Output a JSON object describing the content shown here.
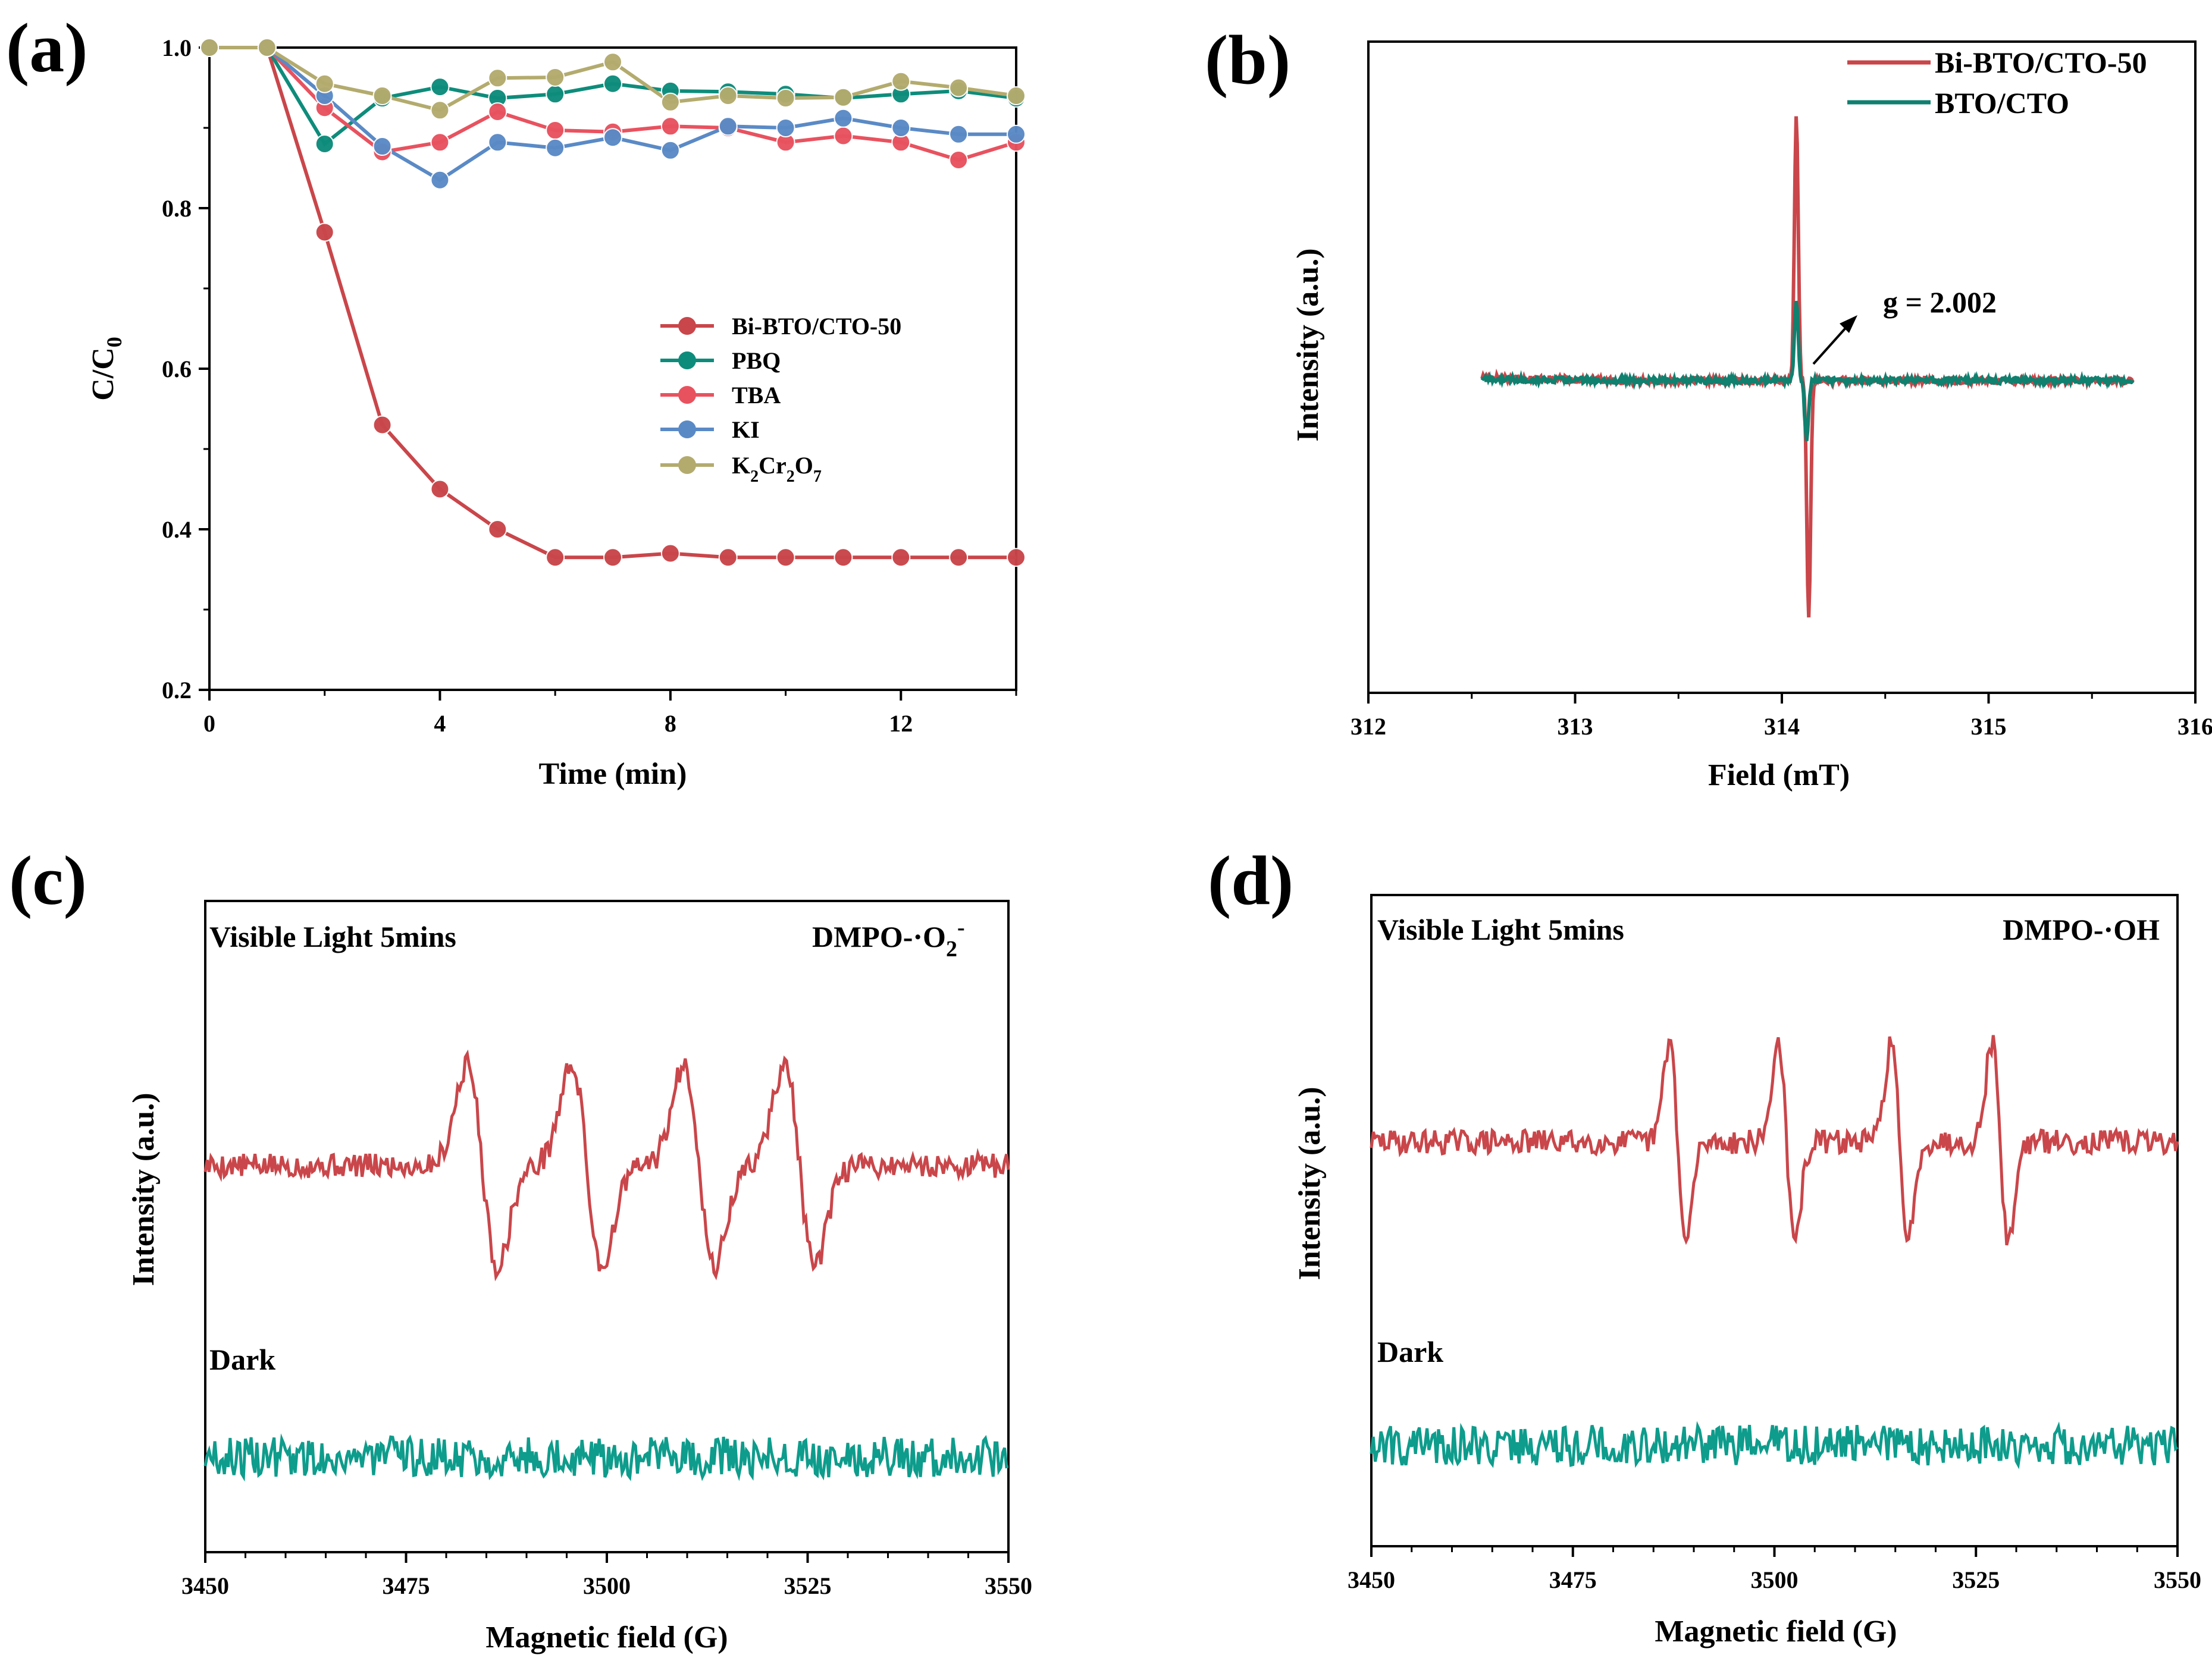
{
  "colors": {
    "red": "#C9464A",
    "teal": "#0E8C7B",
    "teal_dark": "#10806F",
    "pink": "#E8525F",
    "blue": "#5A8AC6",
    "khaki": "#B3AB6E"
  },
  "chart_data": [
    {
      "panel": "(a)",
      "type": "line",
      "xlabel": "Time (min)",
      "ylabel": "C/C0",
      "ylabel_main": "C/C",
      "ylabel_sub": "0",
      "xlim": [
        0,
        14
      ],
      "ylim": [
        0.2,
        1.0
      ],
      "xticks": [
        0,
        4,
        8,
        12
      ],
      "xtick_labels": [
        "0",
        "4",
        "8",
        "12"
      ],
      "yticks": [
        0.2,
        0.4,
        0.6,
        0.8,
        1.0
      ],
      "ytick_labels": [
        "0.2",
        "0.4",
        "0.6",
        "0.8",
        "1.0"
      ],
      "legend_position": "right",
      "x": [
        0,
        1,
        2,
        3,
        4,
        5,
        6,
        7,
        8,
        9,
        10,
        11,
        12,
        13,
        14
      ],
      "series": [
        {
          "name": "Bi-BTO/CTO-50",
          "color": "#C9464A",
          "values": [
            1.0,
            1.0,
            0.77,
            0.53,
            0.45,
            0.4,
            0.365,
            0.365,
            0.37,
            0.365,
            0.365,
            0.365,
            0.365,
            0.365,
            0.365
          ]
        },
        {
          "name": "PBQ",
          "color": "#0E8C7B",
          "values": [
            1.0,
            1.0,
            0.88,
            0.937,
            0.951,
            0.937,
            0.942,
            0.955,
            0.946,
            0.945,
            0.942,
            0.937,
            0.942,
            0.946,
            0.937
          ]
        },
        {
          "name": "TBA",
          "color": "#E8525F",
          "values": [
            1.0,
            1.0,
            0.925,
            0.87,
            0.882,
            0.92,
            0.897,
            0.895,
            0.902,
            0.9,
            0.882,
            0.89,
            0.882,
            0.86,
            0.882
          ]
        },
        {
          "name": "KI",
          "color": "#5A8AC6",
          "values": [
            1.0,
            1.0,
            0.94,
            0.877,
            0.835,
            0.882,
            0.875,
            0.888,
            0.872,
            0.902,
            0.9,
            0.912,
            0.9,
            0.892,
            0.892
          ]
        },
        {
          "name": "K2Cr2O7",
          "color": "#B3AB6E",
          "label_parts": [
            "K",
            "2",
            "Cr",
            "2",
            "O",
            "7"
          ],
          "values": [
            1.0,
            1.0,
            0.955,
            0.94,
            0.922,
            0.962,
            0.963,
            0.982,
            0.932,
            0.94,
            0.937,
            0.938,
            0.958,
            0.95,
            0.94
          ]
        }
      ]
    },
    {
      "panel": "(b)",
      "type": "line",
      "xlabel": "Field (mT)",
      "ylabel": "Intensity (a.u.)",
      "xlim": [
        312,
        316
      ],
      "xticks": [
        312,
        313,
        314,
        315,
        316
      ],
      "xtick_labels": [
        "312",
        "313",
        "314",
        "315",
        "316"
      ],
      "annotation": "g = 2.002",
      "legend_position": "top-right",
      "series": [
        {
          "name": "Bi-BTO/CTO-50",
          "color": "#C9464A",
          "baseline": 0.0,
          "positive_peak_x": 314.07,
          "positive_peak": 0.95,
          "negative_peak_x": 314.13,
          "negative_peak": -0.85,
          "x_range": [
            312.55,
            315.7
          ]
        },
        {
          "name": "BTO/CTO",
          "color": "#10806F",
          "baseline": 0.0,
          "positive_peak_x": 314.07,
          "positive_peak": 0.28,
          "negative_peak_x": 314.12,
          "negative_peak": -0.22,
          "x_range": [
            312.55,
            315.7
          ]
        }
      ]
    },
    {
      "panel": "(c)",
      "type": "line",
      "xlabel": "Magnetic field (G)",
      "ylabel": "Intensity (a.u.)",
      "xlim": [
        3450,
        3550
      ],
      "xticks": [
        3450,
        3475,
        3500,
        3525,
        3550
      ],
      "xtick_labels": [
        "3450",
        "3475",
        "3500",
        "3525",
        "3550"
      ],
      "label_light": "Visible Light 5mins",
      "label_dark": "Dark",
      "species_prefix": "DMPO-·O",
      "species_sub": "2",
      "species_sup": "-",
      "series": [
        {
          "name": "Visible Light 5mins",
          "color": "#C9464A",
          "peak_centers": [
            3484.5,
            3497.5,
            3511.5,
            3524.0
          ],
          "peak_height": 1.0,
          "noise": 0.12
        },
        {
          "name": "Dark",
          "color": "#0E9C8C",
          "noise": 0.2
        }
      ]
    },
    {
      "panel": "(d)",
      "type": "line",
      "xlabel": "Magnetic field (G)",
      "ylabel": "Intensity (a.u.)",
      "xlim": [
        3450,
        3550
      ],
      "xticks": [
        3450,
        3475,
        3500,
        3525,
        3550
      ],
      "xtick_labels": [
        "3450",
        "3475",
        "3500",
        "3525",
        "3550"
      ],
      "label_light": "Visible Light 5mins",
      "label_dark": "Dark",
      "species": "DMPO-·OH",
      "series": [
        {
          "name": "Visible Light 5mins",
          "color": "#C9464A",
          "peak_centers": [
            3488.0,
            3501.5,
            3515.5,
            3528.0
          ],
          "peak_height": 1.0,
          "noise": 0.12
        },
        {
          "name": "Dark",
          "color": "#0E9C8C",
          "noise": 0.2
        }
      ]
    }
  ]
}
